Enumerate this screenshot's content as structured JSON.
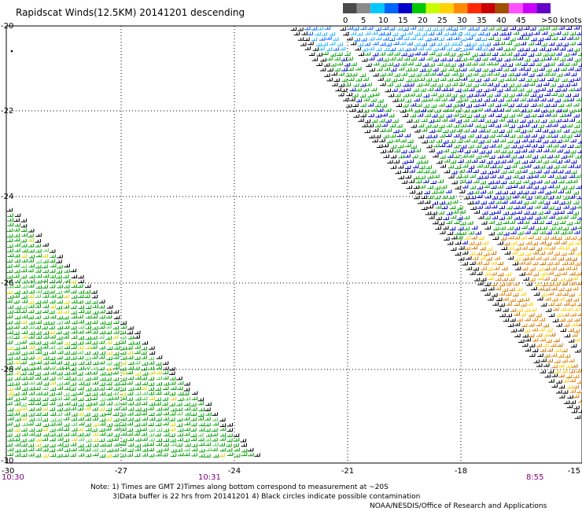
{
  "title": "Rapidscat Winds(12.5KM) 20141201 descending",
  "legend": {
    "colors": [
      "#4a4a4a",
      "#8a8a8a",
      "#00c8ff",
      "#0064ff",
      "#0000c8",
      "#00c800",
      "#c8ff00",
      "#ffd200",
      "#ff8c00",
      "#ff2800",
      "#c80000",
      "#a05000",
      "#ff50ff",
      "#c800ff",
      "#6400c8"
    ],
    "labels": [
      "0",
      "5",
      "10",
      "15",
      "20",
      "25",
      "30",
      "35",
      "40",
      "45",
      ">50 knots"
    ]
  },
  "axes": {
    "lon_labels": [
      "-27",
      "-24",
      "-21",
      "-18",
      "-15"
    ],
    "lat_labels": [
      "-20",
      "-22",
      "-24",
      "-26",
      "-28",
      "-30"
    ],
    "corner_left_label": "-30"
  },
  "times": {
    "left": "10:30",
    "mid": "10:31",
    "right": "8:55",
    "color": "#800080"
  },
  "notes": {
    "line1": "Note: 1) Times are GMT 2)Times along bottom correspond to measurement at ~20S",
    "line2": "3)Data buffer is 22 hrs from 20141201 4) Black circles indicate possible contamination",
    "line3": "NOAA/NESDIS/Office of Research and Applications"
  },
  "swaths": [
    {
      "name": "western-swath-lower-left",
      "dominant_speed_kt": "15-20",
      "dominant_color": "green"
    },
    {
      "name": "eastern-swath-upper-right",
      "dominant_speed_kt": "10-35",
      "colors": [
        "blue",
        "green",
        "yellow",
        "orange",
        "black"
      ]
    }
  ]
}
